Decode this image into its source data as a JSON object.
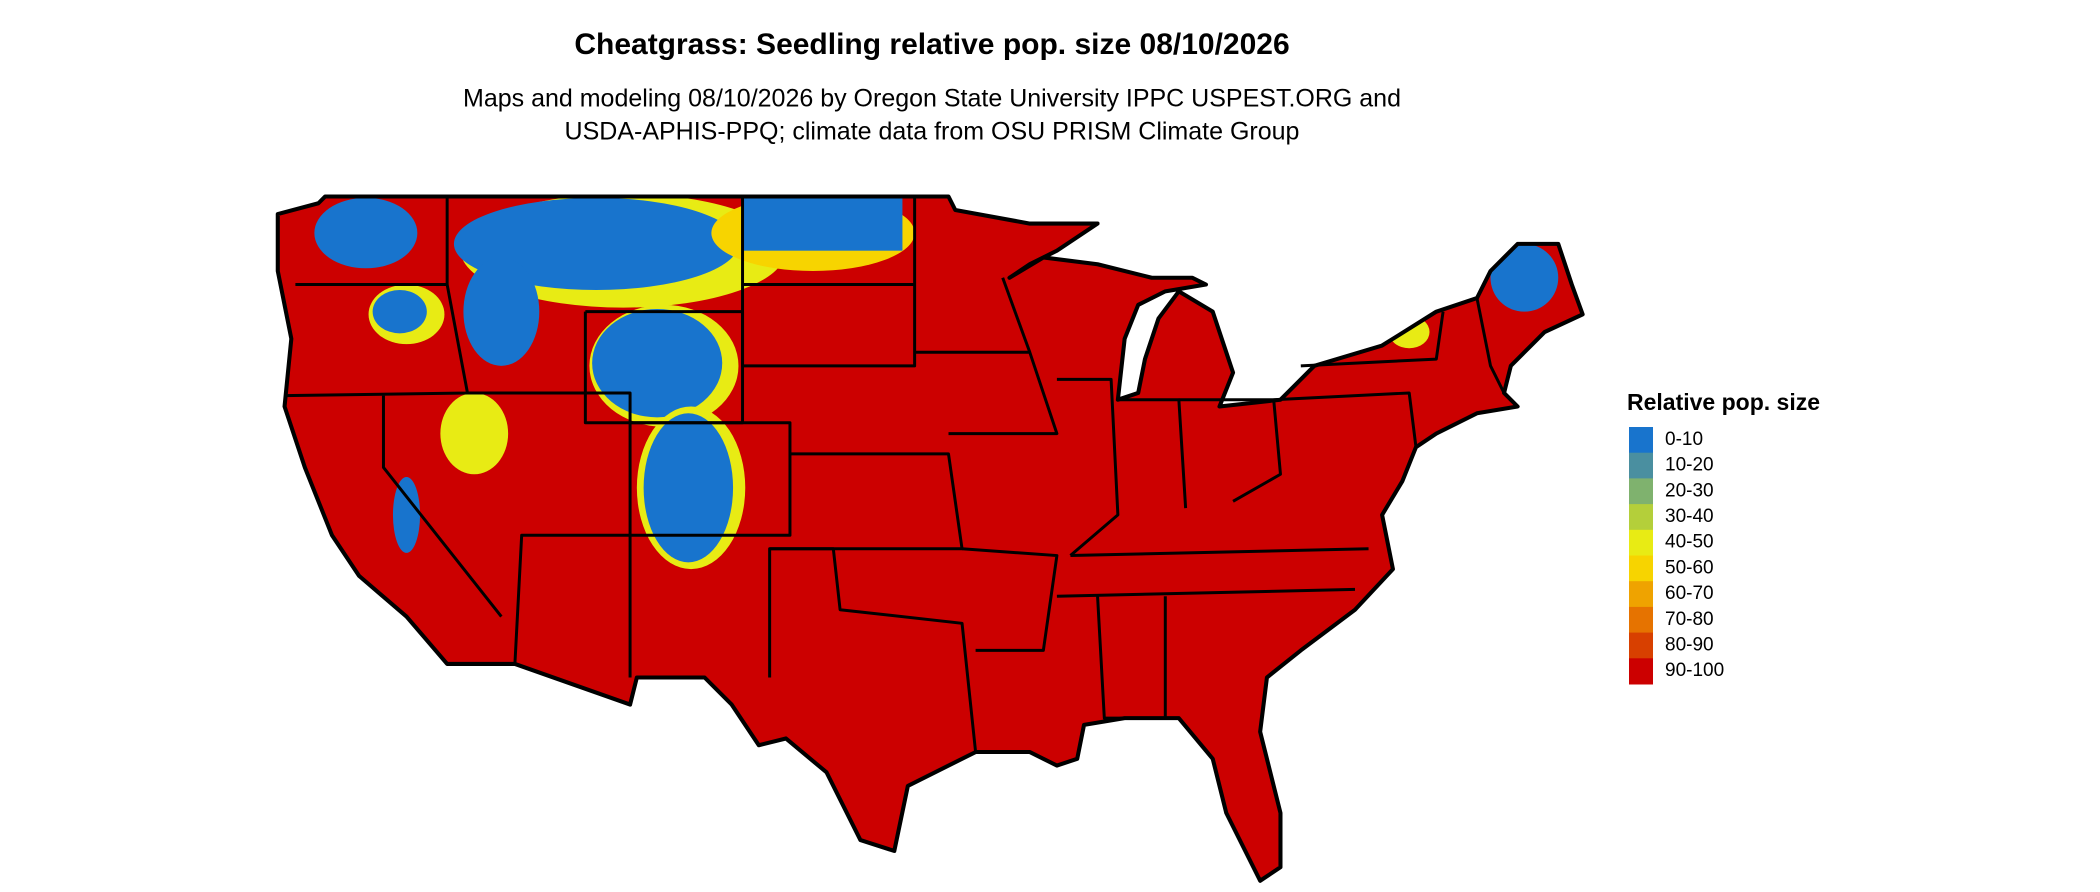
{
  "title": "Cheatgrass: Seedling relative pop. size 08/10/2026",
  "subtitle": [
    "Maps and modeling 08/10/2026 by Oregon State University IPPC USPEST.ORG and",
    "USDA-APHIS-PPQ; climate data from OSU PRISM Climate Group"
  ],
  "legend": {
    "title": "Relative pop. size",
    "items": [
      {
        "label": "0-10",
        "color": "#1874cd"
      },
      {
        "label": "10-20",
        "color": "#4a8fa0"
      },
      {
        "label": "20-30",
        "color": "#7fb26e"
      },
      {
        "label": "30-40",
        "color": "#b4cf3a"
      },
      {
        "label": "40-50",
        "color": "#e8eb14"
      },
      {
        "label": "50-60",
        "color": "#f7d400"
      },
      {
        "label": "60-70",
        "color": "#efa300"
      },
      {
        "label": "70-80",
        "color": "#e67300"
      },
      {
        "label": "80-90",
        "color": "#d84000"
      },
      {
        "label": "90-100",
        "color": "#cc0000"
      }
    ]
  }
}
